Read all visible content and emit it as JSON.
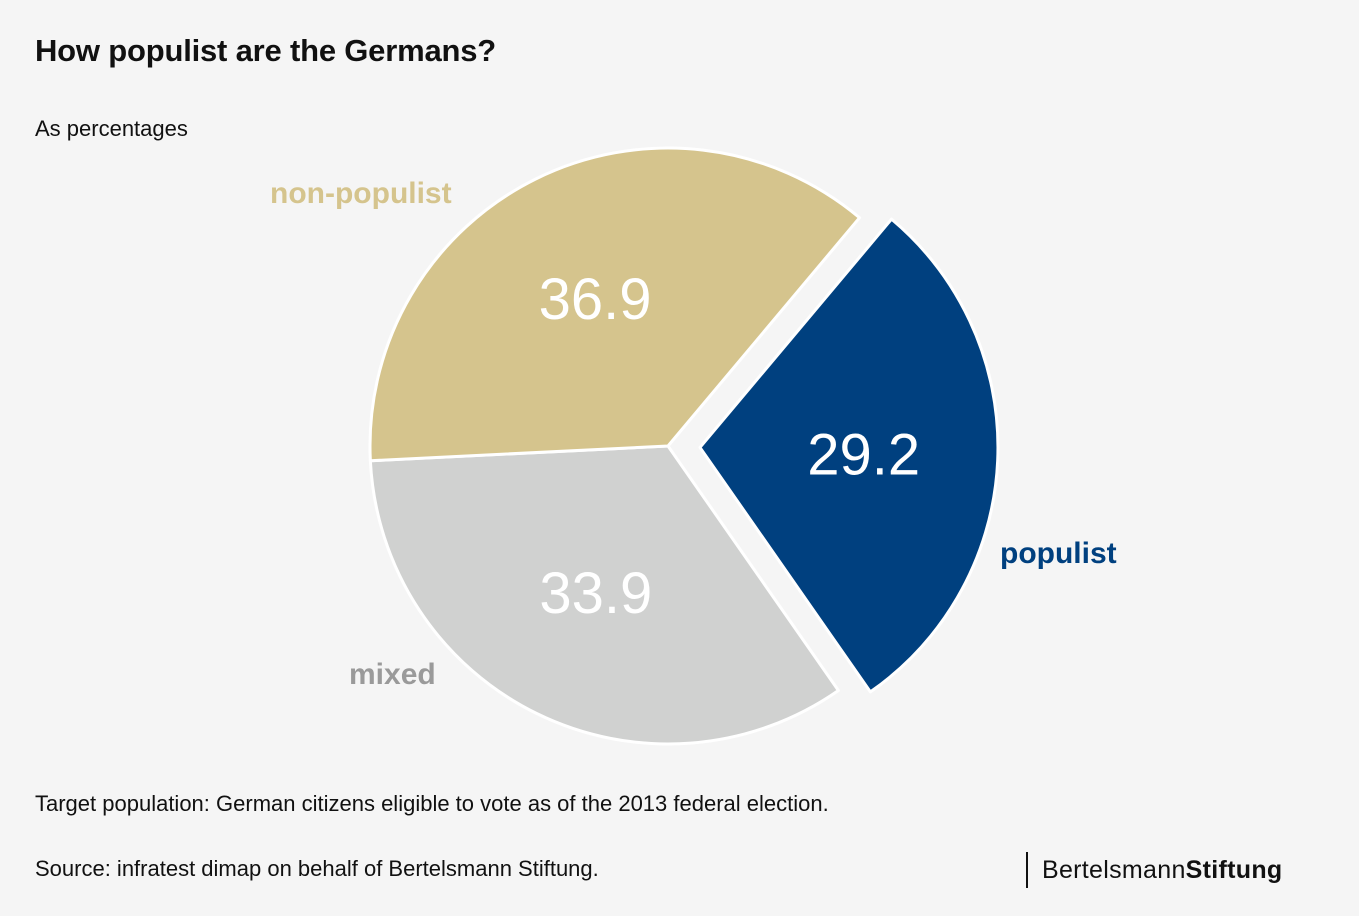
{
  "title": "How populist are the Germans?",
  "subtitle": "As percentages",
  "footnote": "Target population: German citizens eligible to vote as of the 2013 federal election.",
  "source": "Source: infratest dimap on behalf of Bertelsmann Stiftung.",
  "logo": {
    "part1": "Bertelsmann",
    "part2": "Stiftung"
  },
  "chart_data": {
    "type": "pie",
    "title": "How populist are the Germans?",
    "subtitle": "As percentages",
    "slices": [
      {
        "label": "populist",
        "value": 29.2,
        "value_label": "29.2",
        "color": "#00407f",
        "exploded": true
      },
      {
        "label": "mixed",
        "value": 33.9,
        "value_label": "33.9",
        "color": "#d0d1d0",
        "exploded": false
      },
      {
        "label": "non-populist",
        "value": 36.9,
        "value_label": "36.9",
        "color": "#d5c48d",
        "exploded": false
      }
    ],
    "legend": "none"
  }
}
